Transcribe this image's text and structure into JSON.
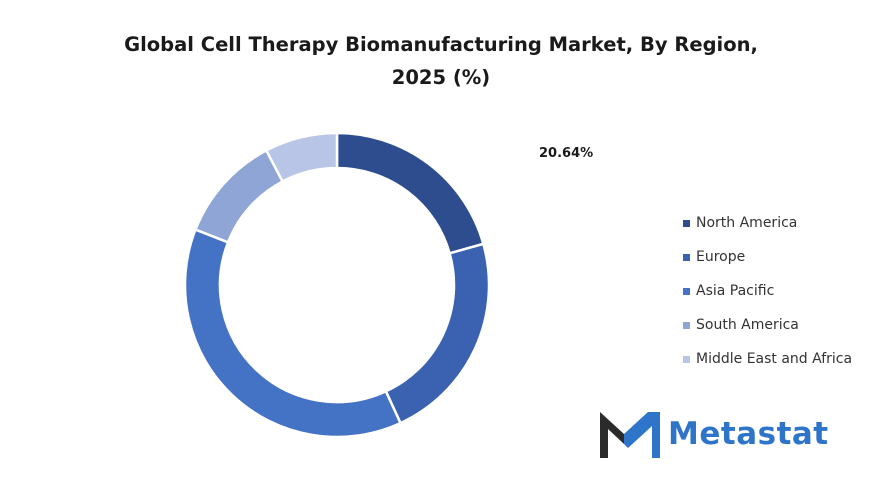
{
  "chart_data": {
    "type": "pie",
    "variant": "donut",
    "title": "Global Cell Therapy Biomanufacturing Market, By Region, 2025 (%)",
    "title_lines": [
      "Global Cell Therapy Biomanufacturing Market,  By Region,",
      "2025 (%)"
    ],
    "categories": [
      "North America",
      "Europe",
      "Asia Pacific",
      "South America",
      "Middle East and Africa"
    ],
    "values": [
      20.64,
      22.5,
      37.8,
      11.36,
      7.7
    ],
    "data_labels": [
      {
        "category": "North America",
        "text": "20.64%"
      }
    ],
    "colors": [
      "#2E4D8F",
      "#3A62B0",
      "#4472C4",
      "#8EA5D6",
      "#B9C5E6"
    ],
    "legend_position": "right",
    "start_angle_deg": 0,
    "direction": "clockwise"
  },
  "logo": {
    "text": "Metastat",
    "text_color": "#2E74C9",
    "mark_colors": [
      "#2B2B2B",
      "#2E74C9"
    ]
  }
}
